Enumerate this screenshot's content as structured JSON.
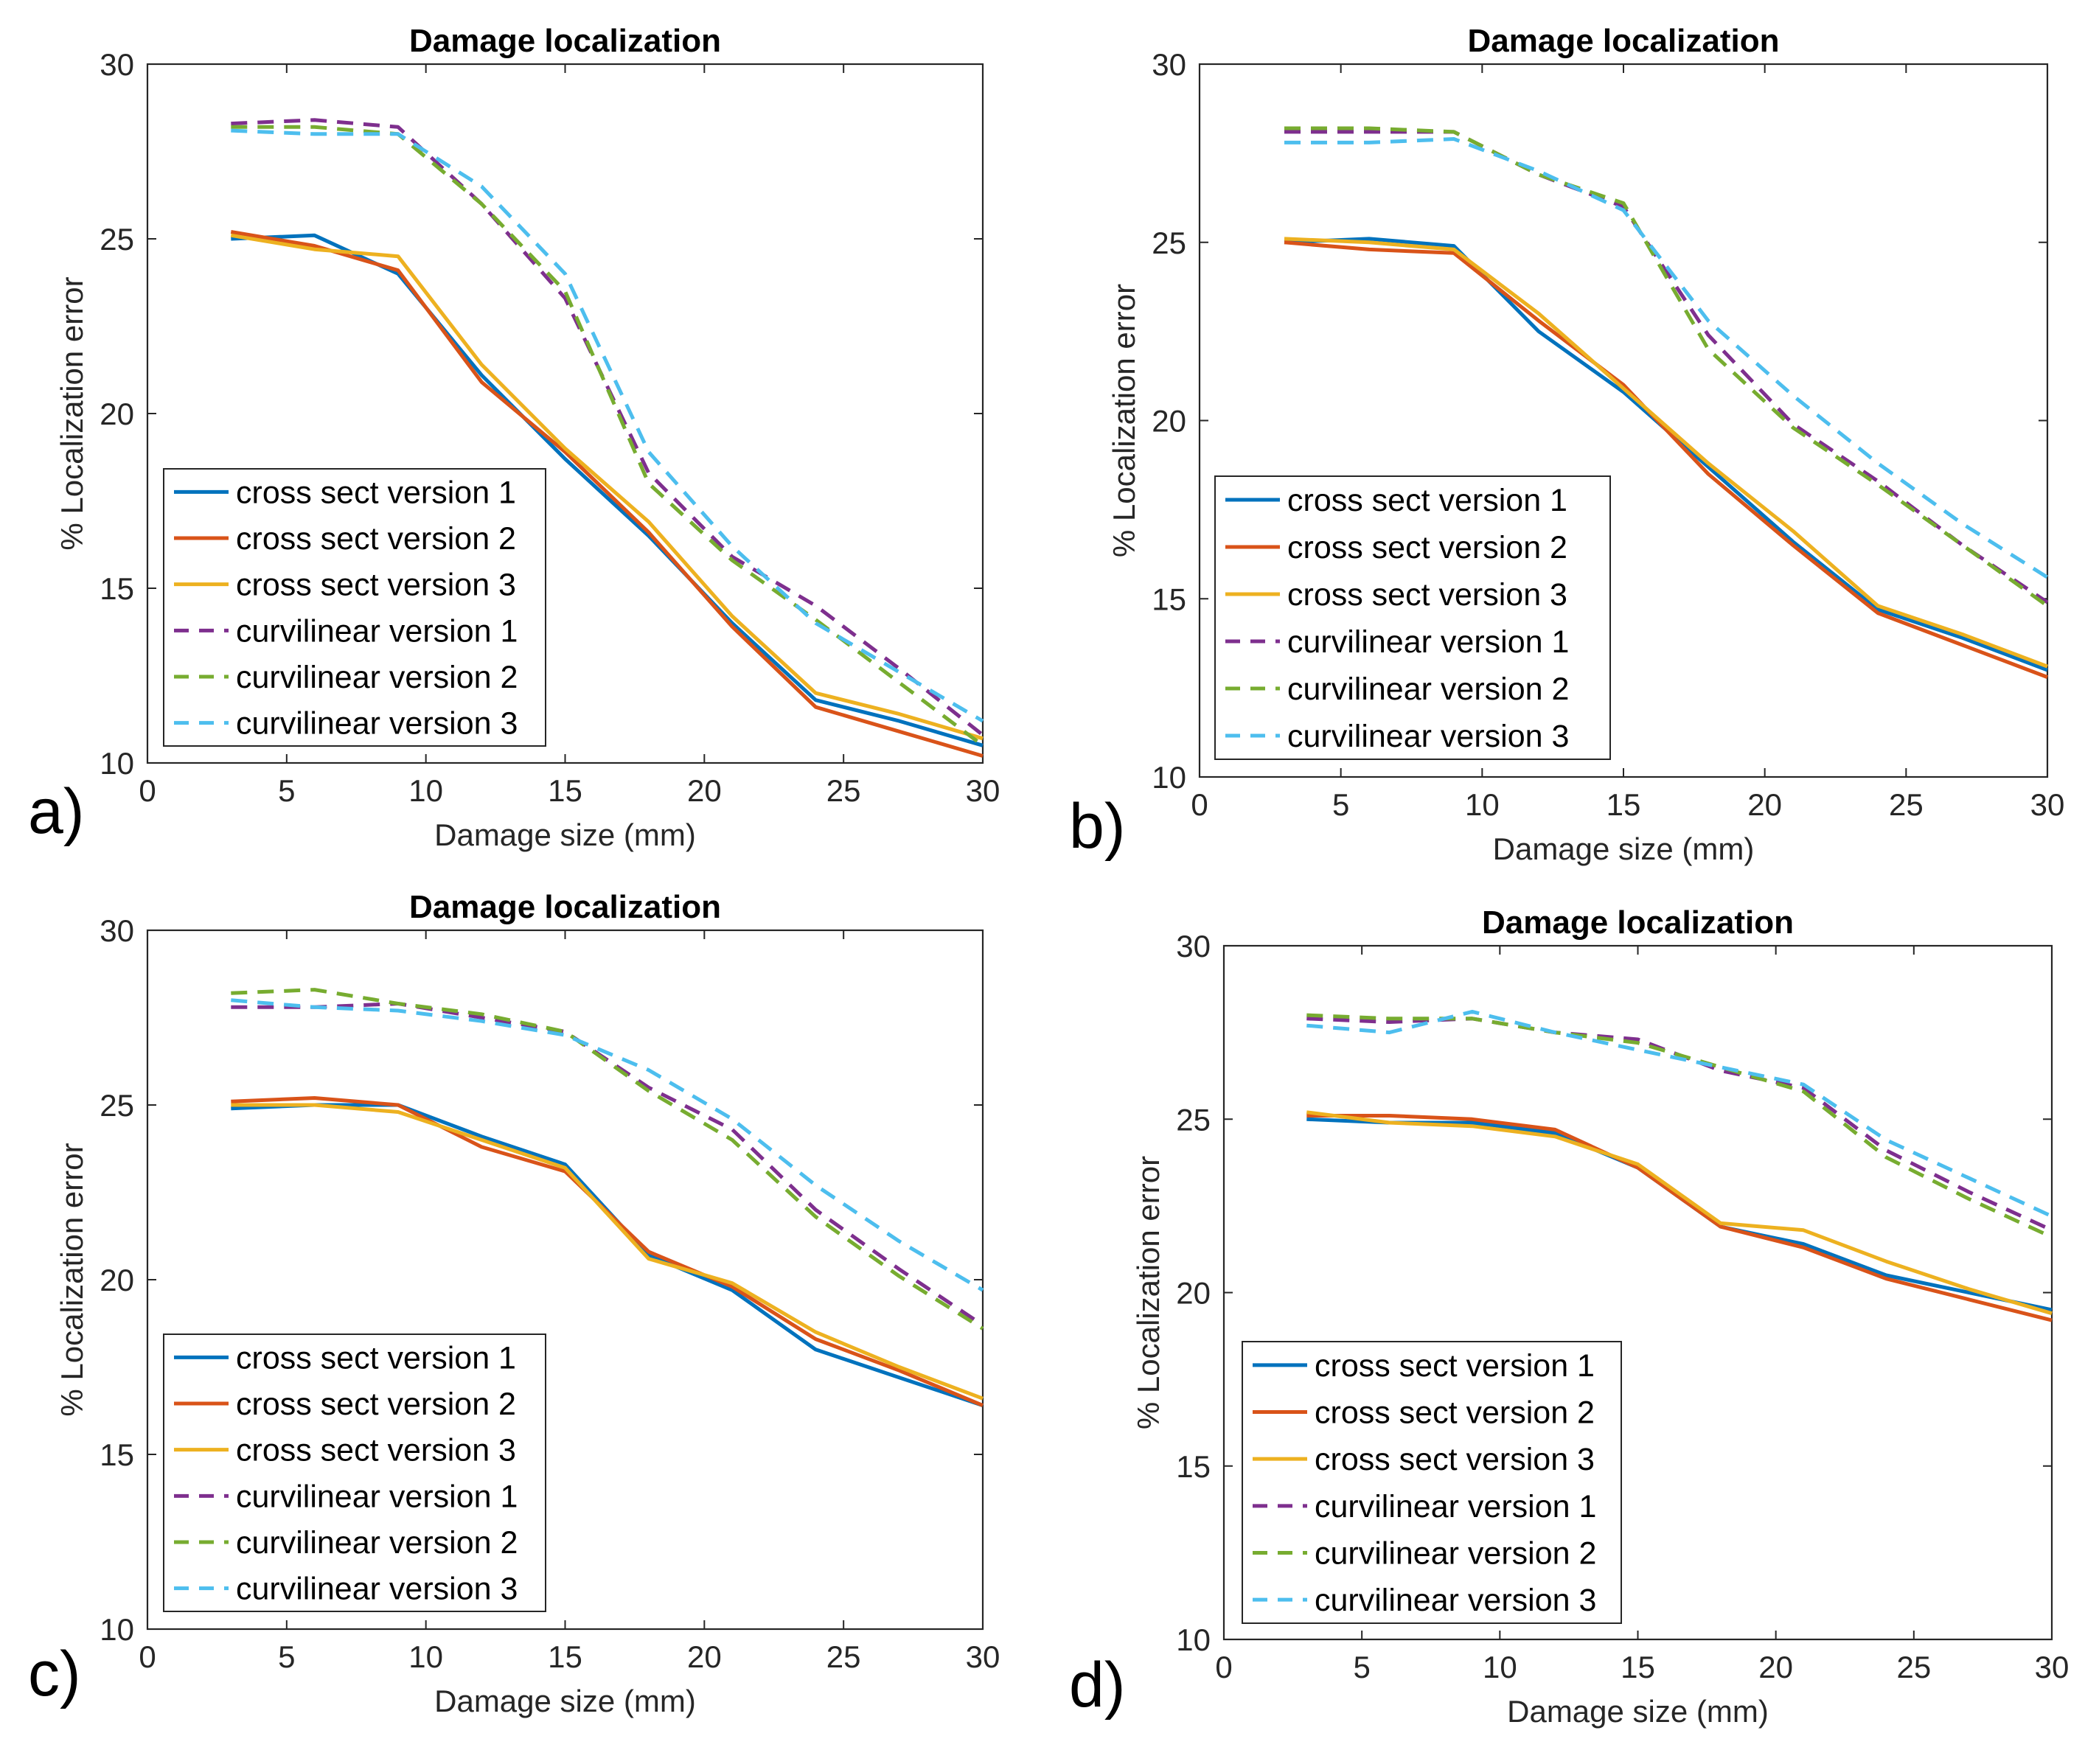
{
  "chart_data": [
    {
      "panel_label": "a)",
      "type": "line",
      "title": "Damage localization",
      "xlabel": "Damage size (mm)",
      "ylabel": "% Localization error",
      "xlim": [
        0,
        30
      ],
      "ylim": [
        10,
        30
      ],
      "xticks": [
        "0",
        "5",
        "10",
        "15",
        "20",
        "25",
        "30"
      ],
      "yticks": [
        "10",
        "15",
        "20",
        "25",
        "30"
      ],
      "x": [
        3,
        6,
        9,
        12,
        15,
        18,
        21,
        24,
        27,
        30
      ],
      "legend_position": "lower-left",
      "series": [
        {
          "name": "cross sect version 1",
          "style": "solid",
          "color": "#0072BD",
          "values": [
            25.0,
            25.1,
            24.0,
            21.1,
            18.7,
            16.5,
            14.0,
            11.8,
            11.2,
            10.5
          ]
        },
        {
          "name": "cross sect version 2",
          "style": "solid",
          "color": "#D95319",
          "values": [
            25.2,
            24.8,
            24.1,
            20.9,
            18.9,
            16.6,
            13.9,
            11.6,
            10.9,
            10.2
          ]
        },
        {
          "name": "cross sect version 3",
          "style": "solid",
          "color": "#EDB120",
          "values": [
            25.1,
            24.7,
            24.5,
            21.4,
            19.0,
            16.9,
            14.2,
            12.0,
            11.4,
            10.7
          ]
        },
        {
          "name": "curvilinear version 1",
          "style": "dashed",
          "color": "#7E2F8E",
          "values": [
            28.3,
            28.4,
            28.2,
            26.0,
            23.3,
            18.3,
            15.9,
            14.5,
            12.7,
            10.8
          ]
        },
        {
          "name": "curvilinear version 2",
          "style": "dashed",
          "color": "#77AC30",
          "values": [
            28.2,
            28.2,
            28.0,
            26.0,
            23.5,
            18.0,
            15.8,
            14.1,
            12.3,
            10.5
          ]
        },
        {
          "name": "curvilinear version 3",
          "style": "dashed",
          "color": "#4DBEEE",
          "values": [
            28.1,
            28.0,
            28.0,
            26.5,
            24.0,
            18.9,
            16.2,
            14.0,
            12.6,
            11.2
          ]
        }
      ]
    },
    {
      "panel_label": "b)",
      "type": "line",
      "title": "Damage localization",
      "xlabel": "Damage size (mm)",
      "ylabel": "% Localization error",
      "xlim": [
        0,
        30
      ],
      "ylim": [
        10,
        30
      ],
      "xticks": [
        "0",
        "5",
        "10",
        "15",
        "20",
        "25",
        "30"
      ],
      "yticks": [
        "10",
        "15",
        "20",
        "25",
        "30"
      ],
      "x": [
        3,
        6,
        9,
        12,
        15,
        18,
        21,
        24,
        27,
        30
      ],
      "legend_position": "lower-left",
      "series": [
        {
          "name": "cross sect version 1",
          "style": "solid",
          "color": "#0072BD",
          "values": [
            25.0,
            25.1,
            24.9,
            22.5,
            20.8,
            18.7,
            16.6,
            14.7,
            13.9,
            13.0
          ]
        },
        {
          "name": "cross sect version 2",
          "style": "solid",
          "color": "#D95319",
          "values": [
            25.0,
            24.8,
            24.7,
            22.8,
            21.0,
            18.5,
            16.5,
            14.6,
            13.7,
            12.8
          ]
        },
        {
          "name": "cross sect version 3",
          "style": "solid",
          "color": "#EDB120",
          "values": [
            25.1,
            25.0,
            24.8,
            23.0,
            20.9,
            18.8,
            16.9,
            14.8,
            14.0,
            13.1
          ]
        },
        {
          "name": "curvilinear version 1",
          "style": "dashed",
          "color": "#7E2F8E",
          "values": [
            28.1,
            28.1,
            28.1,
            26.9,
            26.0,
            22.4,
            19.9,
            18.3,
            16.5,
            14.9
          ]
        },
        {
          "name": "curvilinear version 2",
          "style": "dashed",
          "color": "#77AC30",
          "values": [
            28.2,
            28.2,
            28.1,
            26.9,
            26.1,
            22.0,
            19.8,
            18.2,
            16.5,
            14.8
          ]
        },
        {
          "name": "curvilinear version 3",
          "style": "dashed",
          "color": "#4DBEEE",
          "values": [
            27.8,
            27.8,
            27.9,
            27.0,
            25.9,
            22.8,
            20.7,
            18.8,
            17.1,
            15.6
          ]
        }
      ]
    },
    {
      "panel_label": "c)",
      "type": "line",
      "title": "Damage localization",
      "xlabel": "Damage size (mm)",
      "ylabel": "% Localization error",
      "xlim": [
        0,
        30
      ],
      "ylim": [
        10,
        30
      ],
      "xticks": [
        "0",
        "5",
        "10",
        "15",
        "20",
        "25",
        "30"
      ],
      "yticks": [
        "10",
        "15",
        "20",
        "25",
        "30"
      ],
      "x": [
        3,
        6,
        9,
        12,
        15,
        18,
        21,
        24,
        27,
        30
      ],
      "legend_position": "lower-left",
      "series": [
        {
          "name": "cross sect version 1",
          "style": "solid",
          "color": "#0072BD",
          "values": [
            24.9,
            25.0,
            25.0,
            24.1,
            23.3,
            20.7,
            19.7,
            18.0,
            17.2,
            16.4
          ]
        },
        {
          "name": "cross sect version 2",
          "style": "solid",
          "color": "#D95319",
          "values": [
            25.1,
            25.2,
            25.0,
            23.8,
            23.1,
            20.8,
            19.8,
            18.3,
            17.4,
            16.4
          ]
        },
        {
          "name": "cross sect version 3",
          "style": "solid",
          "color": "#EDB120",
          "values": [
            25.0,
            25.0,
            24.8,
            24.0,
            23.2,
            20.6,
            19.9,
            18.5,
            17.5,
            16.6
          ]
        },
        {
          "name": "curvilinear version 1",
          "style": "dashed",
          "color": "#7E2F8E",
          "values": [
            27.8,
            27.8,
            27.9,
            27.5,
            27.1,
            25.5,
            24.3,
            22.0,
            20.3,
            18.7
          ]
        },
        {
          "name": "curvilinear version 2",
          "style": "dashed",
          "color": "#77AC30",
          "values": [
            28.2,
            28.3,
            27.9,
            27.6,
            27.1,
            25.4,
            24.0,
            21.8,
            20.1,
            18.6
          ]
        },
        {
          "name": "curvilinear version 3",
          "style": "dashed",
          "color": "#4DBEEE",
          "values": [
            28.0,
            27.8,
            27.7,
            27.4,
            27.0,
            26.0,
            24.6,
            22.7,
            21.1,
            19.7
          ]
        }
      ]
    },
    {
      "panel_label": "d)",
      "type": "line",
      "title": "Damage localization",
      "xlabel": "Damage size (mm)",
      "ylabel": "% Localization error",
      "xlim": [
        0,
        30
      ],
      "ylim": [
        10,
        30
      ],
      "xticks": [
        "0",
        "5",
        "10",
        "15",
        "20",
        "25",
        "30"
      ],
      "yticks": [
        "10",
        "15",
        "20",
        "25",
        "30"
      ],
      "x": [
        3,
        6,
        9,
        12,
        15,
        18,
        21,
        24,
        27,
        30
      ],
      "legend_position": "lower-left",
      "series": [
        {
          "name": "cross sect version 1",
          "style": "solid",
          "color": "#0072BD",
          "values": [
            25.0,
            24.9,
            24.9,
            24.6,
            23.6,
            21.9,
            21.4,
            20.5,
            20.0,
            19.5
          ]
        },
        {
          "name": "cross sect version 2",
          "style": "solid",
          "color": "#D95319",
          "values": [
            25.1,
            25.1,
            25.0,
            24.7,
            23.6,
            21.9,
            21.3,
            20.4,
            19.8,
            19.2
          ]
        },
        {
          "name": "cross sect version 3",
          "style": "solid",
          "color": "#EDB120",
          "values": [
            25.2,
            24.9,
            24.8,
            24.5,
            23.7,
            22.0,
            21.8,
            20.9,
            20.1,
            19.4
          ]
        },
        {
          "name": "curvilinear version 1",
          "style": "dashed",
          "color": "#7E2F8E",
          "values": [
            27.9,
            27.8,
            27.9,
            27.5,
            27.3,
            26.4,
            25.9,
            24.1,
            22.9,
            21.8
          ]
        },
        {
          "name": "curvilinear version 2",
          "style": "dashed",
          "color": "#77AC30",
          "values": [
            28.0,
            27.9,
            27.9,
            27.5,
            27.2,
            26.5,
            25.8,
            23.9,
            22.7,
            21.6
          ]
        },
        {
          "name": "curvilinear version 3",
          "style": "dashed",
          "color": "#4DBEEE",
          "values": [
            27.7,
            27.5,
            28.1,
            27.5,
            27.0,
            26.5,
            26.0,
            24.4,
            23.3,
            22.2
          ]
        }
      ]
    }
  ]
}
